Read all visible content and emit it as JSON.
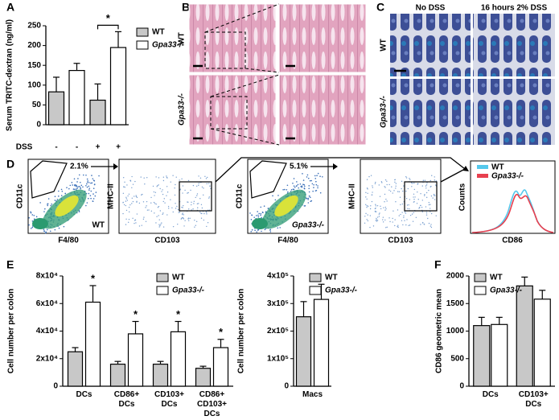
{
  "panel_labels": [
    "A",
    "B",
    "C",
    "D",
    "E",
    "F"
  ],
  "chart_data": [
    {
      "type": "bar",
      "y_label": "Serum TRITC-dextran (ng/ml)",
      "x_label": "DSS",
      "categories": [
        "-",
        "+"
      ],
      "series": [
        {
          "name": "WT",
          "color": "#c8c8c8",
          "values": [
            83,
            62
          ],
          "errors": [
            37,
            41
          ]
        },
        {
          "name": "Gpa33-/-",
          "color": "#ffffff",
          "values": [
            137,
            195
          ],
          "errors": [
            18,
            40
          ]
        }
      ],
      "ylim": [
        0,
        250
      ],
      "yticks": [
        0,
        50,
        100,
        150,
        200,
        250
      ],
      "significance": [
        null,
        "*"
      ]
    },
    {
      "type": "bar",
      "y_label": "Cell number per colon",
      "categories": [
        "DCs",
        "CD86+\nDCs",
        "CD103+\nDCs",
        "CD86+\nCD103+\nDCs"
      ],
      "series": [
        {
          "name": "WT",
          "color": "#c8c8c8",
          "values": [
            25000,
            16000,
            16000,
            13000
          ],
          "errors": [
            3000,
            2000,
            2000,
            1500
          ]
        },
        {
          "name": "Gpa33-/-",
          "color": "#ffffff",
          "values": [
            61000,
            38000,
            39500,
            28000
          ],
          "errors": [
            12000,
            9000,
            7500,
            6000
          ]
        }
      ],
      "ylim": [
        0,
        80000
      ],
      "yticks": [
        0,
        {
          "value": 20000,
          "label": "2x10⁴"
        },
        {
          "value": 40000,
          "label": "4x10⁴"
        },
        {
          "value": 60000,
          "label": "6x10⁴"
        },
        {
          "value": 80000,
          "label": "8x10⁴"
        }
      ],
      "significance": [
        "*",
        "*",
        "*",
        "*"
      ]
    },
    {
      "type": "bar",
      "y_label": "Cell number per colon",
      "categories": [
        "Macs"
      ],
      "series": [
        {
          "name": "WT",
          "color": "#c8c8c8",
          "values": [
            252000
          ],
          "errors": [
            55000
          ]
        },
        {
          "name": "Gpa33-/-",
          "color": "#ffffff",
          "values": [
            315000
          ],
          "errors": [
            55000
          ]
        }
      ],
      "ylim": [
        0,
        400000
      ],
      "yticks": [
        0,
        {
          "value": 100000,
          "label": "1x10⁵"
        },
        {
          "value": 200000,
          "label": "2x10⁵"
        },
        {
          "value": 300000,
          "label": "3x10⁵"
        },
        {
          "value": 400000,
          "label": "4x10⁵"
        }
      ]
    },
    {
      "type": "bar",
      "y_label": "CD86 geometric mean",
      "categories": [
        "DCs",
        "CD103+\nDCs"
      ],
      "series": [
        {
          "name": "WT",
          "color": "#c8c8c8",
          "values": [
            1100,
            1820
          ],
          "errors": [
            150,
            160
          ]
        },
        {
          "name": "Gpa33-/-",
          "color": "#ffffff",
          "values": [
            1120,
            1580
          ],
          "errors": [
            130,
            160
          ]
        }
      ],
      "ylim": [
        0,
        2000
      ],
      "yticks": [
        0,
        500,
        1000,
        1500,
        2000
      ]
    }
  ],
  "histology_b": {
    "row_labels": [
      "WT",
      "Gpa33-/-"
    ]
  },
  "histology_c": {
    "col_labels": [
      "No DSS",
      "16 hours 2% DSS"
    ],
    "row_labels": [
      "WT",
      "Gpa33-/-"
    ]
  },
  "flow": {
    "plots": [
      {
        "y_label": "CD11c",
        "x_label": "F4/80",
        "gate_label": "2.1%",
        "genotype": "WT"
      },
      {
        "y_label": "MHC-II",
        "x_label": "CD103"
      },
      {
        "y_label": "CD11c",
        "x_label": "F4/80",
        "gate_label": "5.1%",
        "genotype": "Gpa33-/-"
      },
      {
        "y_label": "MHC-II",
        "x_label": "CD103"
      }
    ],
    "histogram": {
      "y_label": "Counts",
      "x_label": "CD86",
      "legend": [
        {
          "name": "WT",
          "color": "#55c8ec"
        },
        {
          "name": "Gpa33-/-",
          "color": "#e8404f"
        }
      ]
    }
  }
}
